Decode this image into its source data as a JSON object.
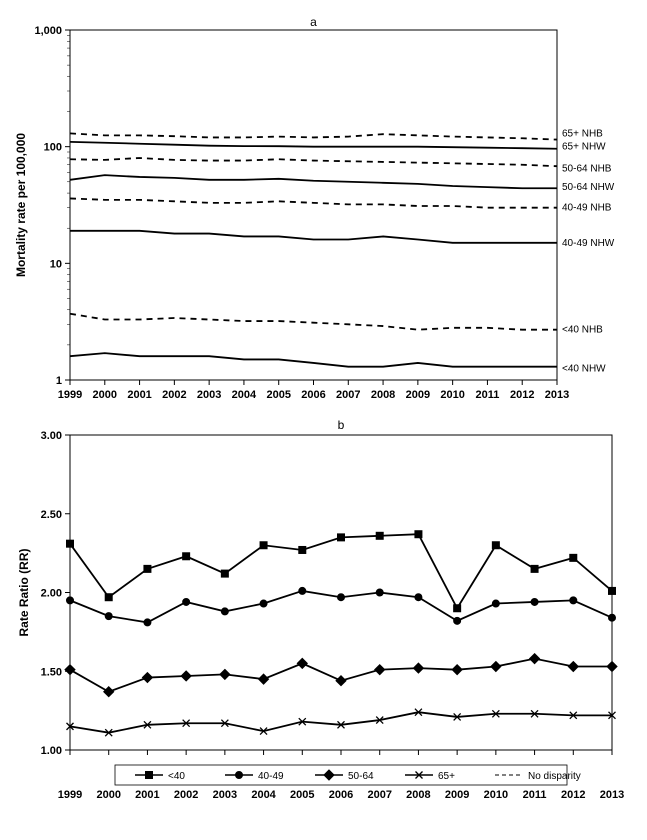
{
  "global": {
    "background_color": "#ffffff",
    "line_color": "#000000",
    "text_color": "#000000",
    "grid_color": "#e0e0e0",
    "font_family": "Arial",
    "axis_fontsize": 11,
    "label_fontsize": 12,
    "title_fontsize": 12,
    "line_width": 1.8,
    "marker_size": 5
  },
  "chart_a": {
    "type": "line",
    "title": "a",
    "ylabel": "Mortality rate per 100,000",
    "yscale": "log",
    "ylim": [
      1,
      1000
    ],
    "yticks": [
      1,
      10,
      100,
      1000
    ],
    "ytick_labels": [
      "1",
      "10",
      "100",
      "1,000"
    ],
    "xlim": [
      1999,
      2013
    ],
    "xticks": [
      1999,
      2000,
      2001,
      2002,
      2003,
      2004,
      2005,
      2006,
      2007,
      2008,
      2009,
      2010,
      2011,
      2012,
      2013
    ],
    "xtick_labels": [
      "1999",
      "2000",
      "2001",
      "2002",
      "2003",
      "2004",
      "2005",
      "2006",
      "2007",
      "2008",
      "2009",
      "2010",
      "2011",
      "2012",
      "2013"
    ],
    "series": [
      {
        "name": "65+ NHB",
        "style": "dashed",
        "label_y": 130,
        "data": [
          130,
          125,
          125,
          123,
          120,
          120,
          122,
          120,
          122,
          128,
          125,
          122,
          120,
          118,
          115
        ]
      },
      {
        "name": "65+ NHW",
        "style": "solid",
        "label_y": 100,
        "data": [
          110,
          108,
          106,
          104,
          102,
          101,
          101,
          100,
          100,
          100,
          100,
          99,
          98,
          97,
          96
        ]
      },
      {
        "name": "50-64 NHB",
        "style": "dashed",
        "label_y": 65,
        "data": [
          78,
          77,
          80,
          77,
          76,
          76,
          78,
          76,
          75,
          74,
          73,
          72,
          71,
          70,
          68
        ]
      },
      {
        "name": "50-64 NHW",
        "style": "solid",
        "label_y": 45,
        "data": [
          52,
          57,
          55,
          54,
          52,
          52,
          53,
          51,
          50,
          49,
          48,
          46,
          45,
          44,
          44
        ]
      },
      {
        "name": "40-49 NHB",
        "style": "dashed",
        "label_y": 30,
        "data": [
          36,
          35,
          35,
          34,
          33,
          33,
          34,
          33,
          32,
          32,
          31,
          31,
          30,
          30,
          30
        ]
      },
      {
        "name": "40-49 NHW",
        "style": "solid",
        "label_y": 15,
        "data": [
          19,
          19,
          19,
          18,
          18,
          17,
          17,
          16,
          16,
          17,
          16,
          15,
          15,
          15,
          15
        ]
      },
      {
        "name": "<40 NHB",
        "style": "dashed",
        "label_y": 2.7,
        "data": [
          3.7,
          3.3,
          3.3,
          3.4,
          3.3,
          3.2,
          3.2,
          3.1,
          3.0,
          2.9,
          2.7,
          2.8,
          2.8,
          2.7,
          2.7
        ]
      },
      {
        "name": "<40 NHW",
        "style": "solid",
        "label_y": 1.25,
        "data": [
          1.6,
          1.7,
          1.6,
          1.6,
          1.6,
          1.5,
          1.5,
          1.4,
          1.3,
          1.3,
          1.4,
          1.3,
          1.3,
          1.3,
          1.3
        ]
      }
    ]
  },
  "chart_b": {
    "type": "line",
    "title": "b",
    "ylabel": "Rate Ratio (RR)",
    "yscale": "linear",
    "ylim": [
      1.0,
      3.0
    ],
    "yticks": [
      1.0,
      1.5,
      2.0,
      2.5,
      3.0
    ],
    "ytick_labels": [
      "1.00",
      "1.50",
      "2.00",
      "2.50",
      "3.00"
    ],
    "xlim": [
      1999,
      2013
    ],
    "xticks": [
      1999,
      2000,
      2001,
      2002,
      2003,
      2004,
      2005,
      2006,
      2007,
      2008,
      2009,
      2010,
      2011,
      2012,
      2013
    ],
    "xtick_labels": [
      "1999",
      "2000",
      "2001",
      "2002",
      "2003",
      "2004",
      "2005",
      "2006",
      "2007",
      "2008",
      "2009",
      "2010",
      "2011",
      "2012",
      "2013"
    ],
    "reference_line": {
      "value": 1.0,
      "style": "dashed",
      "label": "No disparity"
    },
    "series": [
      {
        "name": "<40",
        "marker": "square",
        "data": [
          2.31,
          1.97,
          2.15,
          2.23,
          2.12,
          2.3,
          2.27,
          2.35,
          2.36,
          2.37,
          1.9,
          2.3,
          2.15,
          2.22,
          2.01
        ]
      },
      {
        "name": "40-49",
        "marker": "circle",
        "data": [
          1.95,
          1.85,
          1.81,
          1.94,
          1.88,
          1.93,
          2.01,
          1.97,
          2.0,
          1.97,
          1.82,
          1.93,
          1.94,
          1.95,
          1.84
        ]
      },
      {
        "name": "50-64",
        "marker": "diamond",
        "data": [
          1.51,
          1.37,
          1.46,
          1.47,
          1.48,
          1.45,
          1.55,
          1.44,
          1.51,
          1.52,
          1.51,
          1.53,
          1.58,
          1.53,
          1.53
        ]
      },
      {
        "name": "65+",
        "marker": "x",
        "data": [
          1.15,
          1.11,
          1.16,
          1.17,
          1.17,
          1.12,
          1.18,
          1.16,
          1.19,
          1.24,
          1.21,
          1.23,
          1.23,
          1.22,
          1.22
        ]
      }
    ],
    "legend_position": "bottom"
  }
}
